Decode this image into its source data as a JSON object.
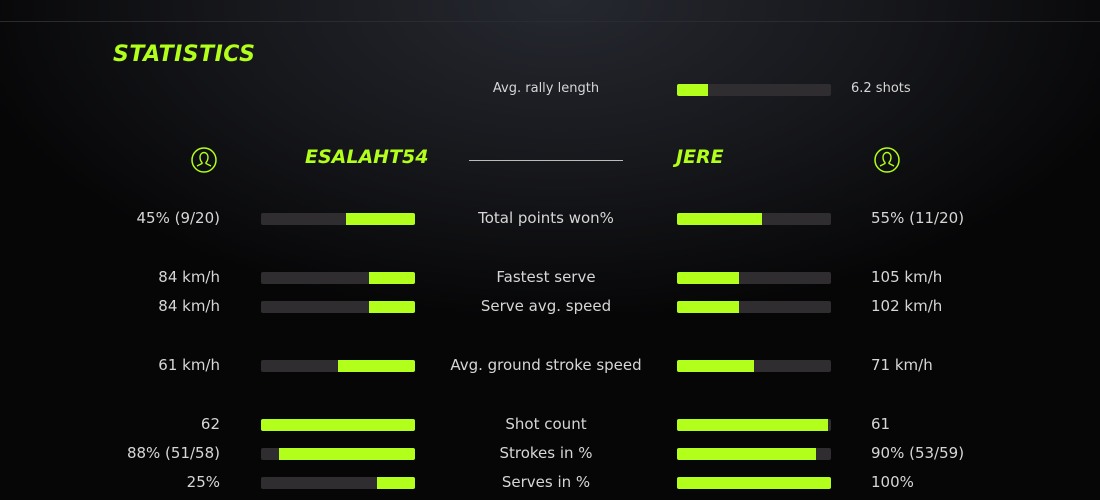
{
  "accent_color": "#b1ff1b",
  "title": "STATISTICS",
  "rally": {
    "label": "Avg. rally length",
    "value": "6.2 shots",
    "fraction": 0.2
  },
  "players": {
    "left": {
      "name": "ESALAHT54",
      "icon": "user-icon"
    },
    "right": {
      "name": "JERE",
      "icon": "user-icon"
    }
  },
  "stats": [
    {
      "label": "Total points won%",
      "left": "45% (9/20)",
      "right": "55% (11/20)",
      "left_fraction": 0.45,
      "right_fraction": 0.55
    },
    {
      "label": "Fastest serve",
      "left": "84 km/h",
      "right": "105 km/h",
      "left_fraction": 0.3,
      "right_fraction": 0.4
    },
    {
      "label": "Serve avg. speed",
      "left": "84 km/h",
      "right": "102 km/h",
      "left_fraction": 0.3,
      "right_fraction": 0.4
    },
    {
      "label": "Avg. ground stroke speed",
      "left": "61 km/h",
      "right": "71 km/h",
      "left_fraction": 0.5,
      "right_fraction": 0.5
    },
    {
      "label": "Shot count",
      "left": "62",
      "right": "61",
      "left_fraction": 1.0,
      "right_fraction": 0.98
    },
    {
      "label": "Strokes in %",
      "left": "88% (51/58)",
      "right": "90% (53/59)",
      "left_fraction": 0.88,
      "right_fraction": 0.9
    },
    {
      "label": "Serves in %",
      "left": "25%",
      "right": "100%",
      "left_fraction": 0.25,
      "right_fraction": 1.0
    }
  ]
}
